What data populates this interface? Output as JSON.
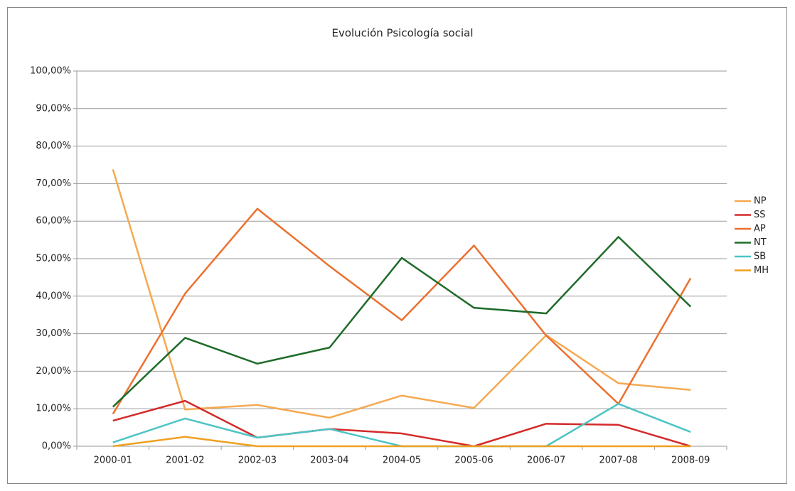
{
  "chart_data": {
    "type": "line",
    "title": "Evolución Psicología social",
    "categories": [
      "2000-01",
      "2001-02",
      "2002-03",
      "2003-04",
      "2004-05",
      "2005-06",
      "2006-07",
      "2007-08",
      "2008-09"
    ],
    "series": [
      {
        "name": "NP",
        "color": "#f5a951",
        "values": [
          73.8,
          9.8,
          11.0,
          7.6,
          13.5,
          10.2,
          29.6,
          16.8,
          15.0
        ]
      },
      {
        "name": "SS",
        "color": "#d42a2a",
        "values": [
          6.8,
          12.1,
          2.3,
          4.6,
          3.4,
          0,
          6.0,
          5.7,
          0
        ]
      },
      {
        "name": "AP",
        "color": "#ec7030",
        "values": [
          8.6,
          40.7,
          63.3,
          48.0,
          33.6,
          53.5,
          29.5,
          11.3,
          44.8
        ]
      },
      {
        "name": "NT",
        "color": "#1e6b2a",
        "values": [
          10.5,
          28.9,
          22.0,
          26.3,
          50.2,
          36.9,
          35.4,
          55.8,
          37.2
        ]
      },
      {
        "name": "SB",
        "color": "#4dc4c4",
        "values": [
          1.0,
          7.4,
          2.3,
          4.6,
          0,
          0,
          0,
          11.3,
          3.8
        ]
      },
      {
        "name": "MH",
        "color": "#f0a020",
        "values": [
          0,
          2.5,
          0,
          0,
          0,
          0,
          0,
          0,
          0
        ]
      }
    ],
    "ylim": [
      0,
      100
    ],
    "yticks": [
      {
        "value": 0,
        "label": "0,00%"
      },
      {
        "value": 10,
        "label": "10,00%"
      },
      {
        "value": 20,
        "label": "20,00%"
      },
      {
        "value": 30,
        "label": "30,00%"
      },
      {
        "value": 40,
        "label": "40,00%"
      },
      {
        "value": 50,
        "label": "50,00%"
      },
      {
        "value": 60,
        "label": "60,00%"
      },
      {
        "value": 70,
        "label": "70,00%"
      },
      {
        "value": 80,
        "label": "80,00%"
      },
      {
        "value": 90,
        "label": "90,00%"
      },
      {
        "value": 100,
        "label": "100,00%"
      }
    ],
    "grid": true,
    "legend": "right"
  }
}
